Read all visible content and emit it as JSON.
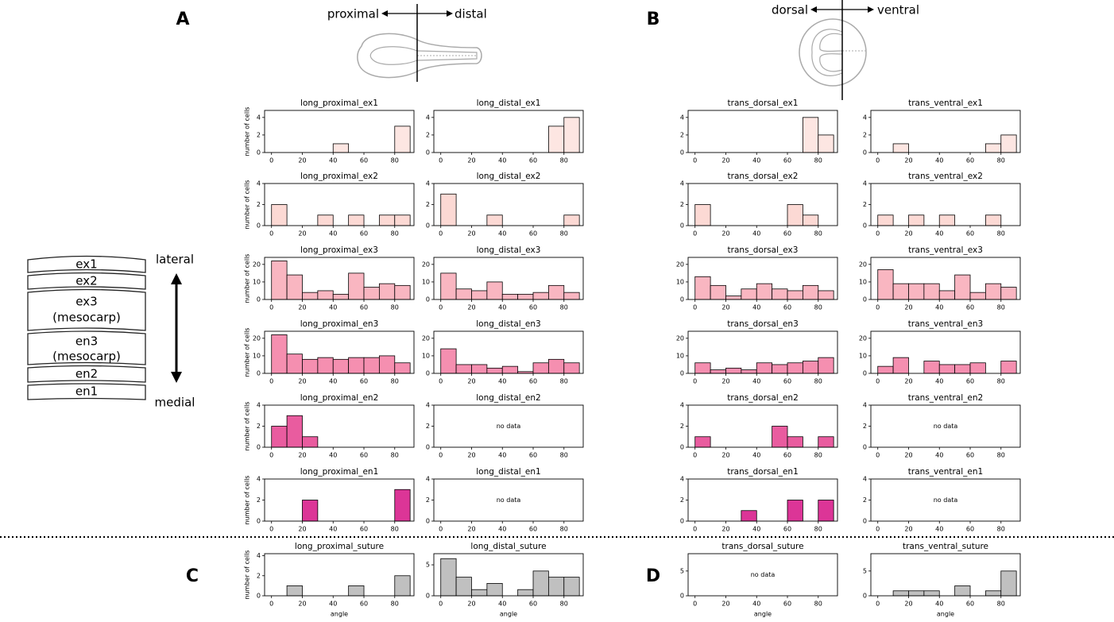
{
  "panel_labels": [
    "A",
    "B",
    "C",
    "D"
  ],
  "diagram": {
    "proximal": "proximal",
    "distal": "distal",
    "dorsal": "dorsal",
    "ventral": "ventral",
    "lateral": "lateral",
    "medial": "medial",
    "layers": [
      [
        "ex1"
      ],
      [
        "ex2"
      ],
      [
        "ex3",
        "(mesocarp)"
      ],
      [
        "en3",
        "(mesocarp)"
      ],
      [
        "en2"
      ],
      [
        "en1"
      ]
    ]
  },
  "chart_data": [
    {
      "type": "histogram",
      "title": "long_proximal_ex1",
      "ylabel": "number of cells",
      "bins": [
        0,
        10,
        20,
        30,
        40,
        50,
        60,
        70,
        80,
        90
      ],
      "counts": [
        0,
        0,
        0,
        0,
        1,
        0,
        0,
        0,
        3
      ],
      "color": "#fde6e2",
      "xlim": [
        -4.5,
        92.5
      ],
      "ylim": [
        0,
        4.8
      ],
      "xticks": [
        0,
        20,
        40,
        60,
        80
      ],
      "yticks": [
        0,
        2,
        4
      ]
    },
    {
      "type": "histogram",
      "title": "long_distal_ex1",
      "bins": [
        0,
        10,
        20,
        30,
        40,
        50,
        60,
        70,
        80,
        90
      ],
      "counts": [
        0,
        0,
        0,
        0,
        0,
        0,
        0,
        3,
        4
      ],
      "color": "#fde6e2",
      "xlim": [
        -4.5,
        92.5
      ],
      "ylim": [
        0,
        4.8
      ],
      "xticks": [
        0,
        20,
        40,
        60,
        80
      ],
      "yticks": [
        0,
        2,
        4
      ]
    },
    {
      "type": "histogram",
      "title": "trans_dorsal_ex1",
      "bins": [
        0,
        10,
        20,
        30,
        40,
        50,
        60,
        70,
        80,
        90
      ],
      "counts": [
        0,
        0,
        0,
        0,
        0,
        0,
        0,
        4,
        2
      ],
      "color": "#fde6e2",
      "xlim": [
        -4.5,
        92.5
      ],
      "ylim": [
        0,
        4.8
      ],
      "xticks": [
        0,
        20,
        40,
        60,
        80
      ],
      "yticks": [
        0,
        2,
        4
      ]
    },
    {
      "type": "histogram",
      "title": "trans_ventral_ex1",
      "bins": [
        0,
        10,
        20,
        30,
        40,
        50,
        60,
        70,
        80,
        90
      ],
      "counts": [
        0,
        1,
        0,
        0,
        0,
        0,
        0,
        1,
        2
      ],
      "color": "#fde6e2",
      "xlim": [
        -4.5,
        92.5
      ],
      "ylim": [
        0,
        4.8
      ],
      "xticks": [
        0,
        20,
        40,
        60,
        80
      ],
      "yticks": [
        0,
        2,
        4
      ]
    },
    {
      "type": "histogram",
      "title": "long_proximal_ex2",
      "ylabel": "number of cells",
      "bins": [
        0,
        10,
        20,
        30,
        40,
        50,
        60,
        70,
        80,
        90
      ],
      "counts": [
        2,
        0,
        0,
        1,
        0,
        1,
        0,
        1,
        1
      ],
      "color": "#fcd9d4",
      "xlim": [
        -4.5,
        92.5
      ],
      "ylim": [
        0,
        4
      ],
      "xticks": [
        0,
        20,
        40,
        60,
        80
      ],
      "yticks": [
        0,
        2,
        4
      ]
    },
    {
      "type": "histogram",
      "title": "long_distal_ex2",
      "bins": [
        0,
        10,
        20,
        30,
        40,
        50,
        60,
        70,
        80,
        90
      ],
      "counts": [
        3,
        0,
        0,
        1,
        0,
        0,
        0,
        0,
        1
      ],
      "color": "#fcd9d4",
      "xlim": [
        -4.5,
        92.5
      ],
      "ylim": [
        0,
        4
      ],
      "xticks": [
        0,
        20,
        40,
        60,
        80
      ],
      "yticks": [
        0,
        2,
        4
      ]
    },
    {
      "type": "histogram",
      "title": "trans_dorsal_ex2",
      "bins": [
        0,
        10,
        20,
        30,
        40,
        50,
        60,
        70,
        80,
        90
      ],
      "counts": [
        2,
        0,
        0,
        0,
        0,
        0,
        2,
        1,
        0
      ],
      "color": "#fcd9d4",
      "xlim": [
        -4.5,
        92.5
      ],
      "ylim": [
        0,
        4
      ],
      "xticks": [
        0,
        20,
        40,
        60,
        80
      ],
      "yticks": [
        0,
        2,
        4
      ]
    },
    {
      "type": "histogram",
      "title": "trans_ventral_ex2",
      "bins": [
        0,
        10,
        20,
        30,
        40,
        50,
        60,
        70,
        80,
        90
      ],
      "counts": [
        1,
        0,
        1,
        0,
        1,
        0,
        0,
        1,
        0
      ],
      "color": "#fcd9d4",
      "xlim": [
        -4.5,
        92.5
      ],
      "ylim": [
        0,
        4
      ],
      "xticks": [
        0,
        20,
        40,
        60,
        80
      ],
      "yticks": [
        0,
        2,
        4
      ]
    },
    {
      "type": "histogram",
      "title": "long_proximal_ex3",
      "ylabel": "number of cells",
      "bins": [
        0,
        10,
        20,
        30,
        40,
        50,
        60,
        70,
        80,
        90
      ],
      "counts": [
        22,
        14,
        4,
        5,
        3,
        15,
        7,
        9,
        8
      ],
      "color": "#f9b6c1",
      "xlim": [
        -4.5,
        92.5
      ],
      "ylim": [
        0,
        24
      ],
      "xticks": [
        0,
        20,
        40,
        60,
        80
      ],
      "yticks": [
        0,
        10,
        20
      ]
    },
    {
      "type": "histogram",
      "title": "long_distal_ex3",
      "bins": [
        0,
        10,
        20,
        30,
        40,
        50,
        60,
        70,
        80,
        90
      ],
      "counts": [
        15,
        6,
        5,
        10,
        3,
        3,
        4,
        8,
        4
      ],
      "color": "#f9b6c1",
      "xlim": [
        -4.5,
        92.5
      ],
      "ylim": [
        0,
        24
      ],
      "xticks": [
        0,
        20,
        40,
        60,
        80
      ],
      "yticks": [
        0,
        10,
        20
      ]
    },
    {
      "type": "histogram",
      "title": "trans_dorsal_ex3",
      "bins": [
        0,
        10,
        20,
        30,
        40,
        50,
        60,
        70,
        80,
        90
      ],
      "counts": [
        13,
        8,
        2,
        6,
        9,
        6,
        5,
        8,
        5
      ],
      "color": "#f9b6c1",
      "xlim": [
        -4.5,
        92.5
      ],
      "ylim": [
        0,
        24
      ],
      "xticks": [
        0,
        20,
        40,
        60,
        80
      ],
      "yticks": [
        0,
        10,
        20
      ]
    },
    {
      "type": "histogram",
      "title": "trans_ventral_ex3",
      "bins": [
        0,
        10,
        20,
        30,
        40,
        50,
        60,
        70,
        80,
        90
      ],
      "counts": [
        17,
        9,
        9,
        9,
        5,
        14,
        4,
        9,
        7
      ],
      "color": "#f9b6c1",
      "xlim": [
        -4.5,
        92.5
      ],
      "ylim": [
        0,
        24
      ],
      "xticks": [
        0,
        20,
        40,
        60,
        80
      ],
      "yticks": [
        0,
        10,
        20
      ]
    },
    {
      "type": "histogram",
      "title": "long_proximal_en3",
      "ylabel": "number of cells",
      "bins": [
        0,
        10,
        20,
        30,
        40,
        50,
        60,
        70,
        80,
        90
      ],
      "counts": [
        22,
        11,
        8,
        9,
        8,
        9,
        9,
        10,
        6
      ],
      "color": "#f58fb0",
      "xlim": [
        -4.5,
        92.5
      ],
      "ylim": [
        0,
        24
      ],
      "xticks": [
        0,
        20,
        40,
        60,
        80
      ],
      "yticks": [
        0,
        10,
        20
      ]
    },
    {
      "type": "histogram",
      "title": "long_distal_en3",
      "bins": [
        0,
        10,
        20,
        30,
        40,
        50,
        60,
        70,
        80,
        90
      ],
      "counts": [
        14,
        5,
        5,
        3,
        4,
        1,
        6,
        8,
        6
      ],
      "color": "#f58fb0",
      "xlim": [
        -4.5,
        92.5
      ],
      "ylim": [
        0,
        24
      ],
      "xticks": [
        0,
        20,
        40,
        60,
        80
      ],
      "yticks": [
        0,
        10,
        20
      ]
    },
    {
      "type": "histogram",
      "title": "trans_dorsal_en3",
      "bins": [
        0,
        10,
        20,
        30,
        40,
        50,
        60,
        70,
        80,
        90
      ],
      "counts": [
        6,
        2,
        3,
        2,
        6,
        5,
        6,
        7,
        9
      ],
      "color": "#f58fb0",
      "xlim": [
        -4.5,
        92.5
      ],
      "ylim": [
        0,
        24
      ],
      "xticks": [
        0,
        20,
        40,
        60,
        80
      ],
      "yticks": [
        0,
        10,
        20
      ]
    },
    {
      "type": "histogram",
      "title": "trans_ventral_en3",
      "bins": [
        0,
        10,
        20,
        30,
        40,
        50,
        60,
        70,
        80,
        90
      ],
      "counts": [
        4,
        9,
        0,
        7,
        5,
        5,
        6,
        0,
        7
      ],
      "color": "#f58fb0",
      "xlim": [
        -4.5,
        92.5
      ],
      "ylim": [
        0,
        24
      ],
      "xticks": [
        0,
        20,
        40,
        60,
        80
      ],
      "yticks": [
        0,
        10,
        20
      ]
    },
    {
      "type": "histogram",
      "title": "long_proximal_en2",
      "ylabel": "number of cells",
      "bins": [
        0,
        10,
        20,
        30,
        40,
        50,
        60,
        70,
        80,
        90
      ],
      "counts": [
        2,
        3,
        1,
        0,
        0,
        0,
        0,
        0,
        0
      ],
      "color": "#e95c9f",
      "xlim": [
        -4.5,
        92.5
      ],
      "ylim": [
        0,
        4
      ],
      "xticks": [
        0,
        20,
        40,
        60,
        80
      ],
      "yticks": [
        0,
        2,
        4
      ]
    },
    {
      "type": "histogram",
      "title": "long_distal_en2",
      "annotation": "no data",
      "color": "#e95c9f",
      "xlim": [
        -4.5,
        92.5
      ],
      "ylim": [
        0,
        4
      ],
      "xticks": [
        0,
        20,
        40,
        60,
        80
      ],
      "yticks": [
        0,
        2,
        4
      ]
    },
    {
      "type": "histogram",
      "title": "trans_dorsal_en2",
      "bins": [
        0,
        10,
        20,
        30,
        40,
        50,
        60,
        70,
        80,
        90
      ],
      "counts": [
        1,
        0,
        0,
        0,
        0,
        2,
        1,
        0,
        1
      ],
      "color": "#e95c9f",
      "xlim": [
        -4.5,
        92.5
      ],
      "ylim": [
        0,
        4
      ],
      "xticks": [
        0,
        20,
        40,
        60,
        80
      ],
      "yticks": [
        0,
        2,
        4
      ]
    },
    {
      "type": "histogram",
      "title": "trans_ventral_en2",
      "annotation": "no data",
      "color": "#e95c9f",
      "xlim": [
        -4.5,
        92.5
      ],
      "ylim": [
        0,
        4
      ],
      "xticks": [
        0,
        20,
        40,
        60,
        80
      ],
      "yticks": [
        0,
        2,
        4
      ]
    },
    {
      "type": "histogram",
      "title": "long_proximal_en1",
      "ylabel": "number of cells",
      "bins": [
        0,
        10,
        20,
        30,
        40,
        50,
        60,
        70,
        80,
        90
      ],
      "counts": [
        0,
        0,
        2,
        0,
        0,
        0,
        0,
        0,
        3
      ],
      "color": "#dc3597",
      "xlim": [
        -4.5,
        92.5
      ],
      "ylim": [
        0,
        4
      ],
      "xticks": [
        0,
        20,
        40,
        60,
        80
      ],
      "yticks": [
        0,
        2,
        4
      ]
    },
    {
      "type": "histogram",
      "title": "long_distal_en1",
      "annotation": "no data",
      "color": "#dc3597",
      "xlim": [
        -4.5,
        92.5
      ],
      "ylim": [
        0,
        4
      ],
      "xticks": [
        0,
        20,
        40,
        60,
        80
      ],
      "yticks": [
        0,
        2,
        4
      ]
    },
    {
      "type": "histogram",
      "title": "trans_dorsal_en1",
      "bins": [
        0,
        10,
        20,
        30,
        40,
        50,
        60,
        70,
        80,
        90
      ],
      "counts": [
        0,
        0,
        0,
        1,
        0,
        0,
        2,
        0,
        2
      ],
      "color": "#dc3597",
      "xlim": [
        -4.5,
        92.5
      ],
      "ylim": [
        0,
        4
      ],
      "xticks": [
        0,
        20,
        40,
        60,
        80
      ],
      "yticks": [
        0,
        2,
        4
      ]
    },
    {
      "type": "histogram",
      "title": "trans_ventral_en1",
      "annotation": "no data",
      "color": "#dc3597",
      "xlim": [
        -4.5,
        92.5
      ],
      "ylim": [
        0,
        4
      ],
      "xticks": [
        0,
        20,
        40,
        60,
        80
      ],
      "yticks": [
        0,
        2,
        4
      ]
    },
    {
      "type": "histogram",
      "title": "long_proximal_suture",
      "ylabel": "number of cells",
      "xlabel": "angle",
      "bins": [
        0,
        10,
        20,
        30,
        40,
        50,
        60,
        70,
        80,
        90
      ],
      "counts": [
        0,
        1,
        0,
        0,
        0,
        1,
        0,
        0,
        2
      ],
      "color": "#c0c0c0",
      "xlim": [
        -4.5,
        92.5
      ],
      "ylim": [
        0,
        4.2
      ],
      "xticks": [
        0,
        20,
        40,
        60,
        80
      ],
      "yticks": [
        0,
        2,
        4
      ]
    },
    {
      "type": "histogram",
      "title": "long_distal_suture",
      "xlabel": "angle",
      "bins": [
        0,
        10,
        20,
        30,
        40,
        50,
        60,
        70,
        80,
        90
      ],
      "counts": [
        6,
        3,
        1,
        2,
        0,
        1,
        4,
        3,
        3
      ],
      "color": "#c0c0c0",
      "xlim": [
        -4.5,
        92.5
      ],
      "ylim": [
        0,
        6.8
      ],
      "xticks": [
        0,
        20,
        40,
        60,
        80
      ],
      "yticks": [
        0,
        5
      ]
    },
    {
      "type": "histogram",
      "title": "trans_dorsal_suture",
      "xlabel": "angle",
      "annotation": "no data",
      "color": "#c0c0c0",
      "xlim": [
        -4.5,
        92.5
      ],
      "ylim": [
        0,
        8.5
      ],
      "xticks": [
        0,
        20,
        40,
        60,
        80
      ],
      "yticks": [
        0,
        5
      ]
    },
    {
      "type": "histogram",
      "title": "trans_ventral_suture",
      "xlabel": "angle",
      "bins": [
        0,
        10,
        20,
        30,
        40,
        50,
        60,
        70,
        80,
        90
      ],
      "counts": [
        0,
        1,
        1,
        1,
        0,
        2,
        0,
        1,
        5
      ],
      "color": "#c0c0c0",
      "xlim": [
        -4.5,
        92.5
      ],
      "ylim": [
        0,
        8.5
      ],
      "xticks": [
        0,
        20,
        40,
        60,
        80
      ],
      "yticks": [
        0,
        5
      ]
    }
  ]
}
